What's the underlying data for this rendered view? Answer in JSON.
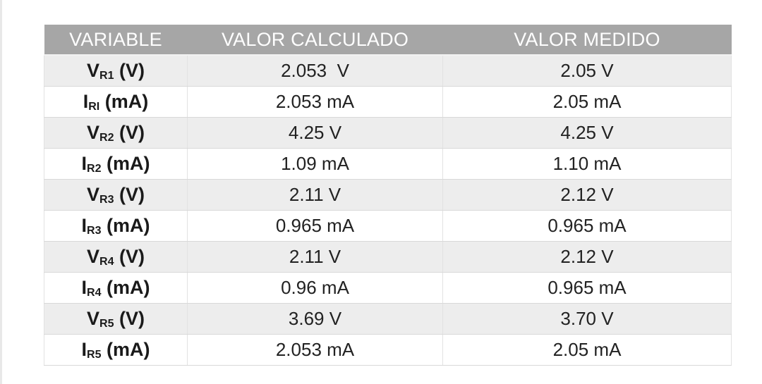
{
  "table": {
    "headers": [
      "VARIABLE",
      "VALOR CALCULADO",
      "VALOR MEDIDO"
    ],
    "rows": [
      {
        "symbol": "V",
        "subscript": "R1",
        "unit": " (V)",
        "calculado": "2.053  V",
        "medido": "2.05 V"
      },
      {
        "symbol": "I",
        "subscript": "RI",
        "unit": " (mA)",
        "calculado": "2.053 mA",
        "medido": "2.05 mA"
      },
      {
        "symbol": "V",
        "subscript": "R2",
        "unit": " (V)",
        "calculado": "4.25 V",
        "medido": "4.25 V"
      },
      {
        "symbol": "I",
        "subscript": "R2",
        "unit": " (mA)",
        "calculado": "1.09 mA",
        "medido": "1.10 mA"
      },
      {
        "symbol": "V",
        "subscript": "R3",
        "unit": " (V)",
        "calculado": "2.11 V",
        "medido": "2.12 V"
      },
      {
        "symbol": "I",
        "subscript": "R3",
        "unit": " (mA)",
        "calculado": "0.965 mA",
        "medido": "0.965 mA"
      },
      {
        "symbol": "V",
        "subscript": "R4",
        "unit": " (V)",
        "calculado": "2.11 V",
        "medido": "2.12 V"
      },
      {
        "symbol": "I",
        "subscript": "R4",
        "unit": " (mA)",
        "calculado": "0.96 mA",
        "medido": "0.965 mA"
      },
      {
        "symbol": "V",
        "subscript": "R5",
        "unit": " (V)",
        "calculado": "3.69 V",
        "medido": "3.70 V"
      },
      {
        "symbol": "I",
        "subscript": "R5",
        "unit": " (mA)",
        "calculado": "2.053 mA",
        "medido": "2.05 mA"
      }
    ]
  }
}
